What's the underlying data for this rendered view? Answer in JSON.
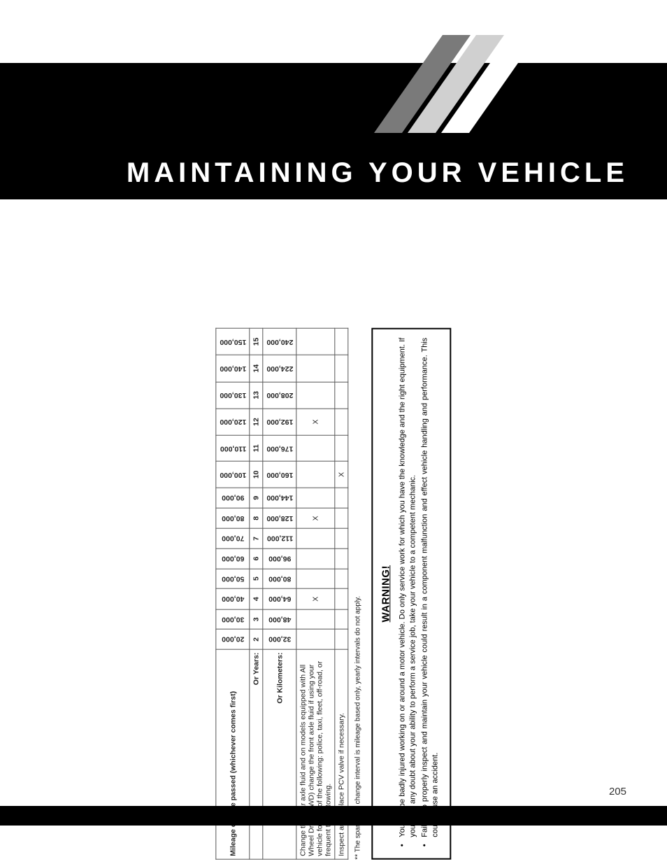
{
  "header": {
    "title": "MAINTAINING YOUR VEHICLE",
    "stripe_colors": [
      "#7a7a7a",
      "#d0d0d0",
      "#ffffff"
    ]
  },
  "table": {
    "caption": "Mileage or time passed (whichever comes first)",
    "miles": [
      "20,000",
      "30,000",
      "40,000",
      "50,000",
      "60,000",
      "70,000",
      "80,000",
      "90,000",
      "100,000",
      "110,000",
      "120,000",
      "130,000",
      "140,000",
      "150,000"
    ],
    "years_label": "Or Years:",
    "years": [
      "2",
      "3",
      "4",
      "5",
      "6",
      "7",
      "8",
      "9",
      "10",
      "11",
      "12",
      "13",
      "14",
      "15"
    ],
    "km_label": "Or Kilometers:",
    "km": [
      "32,000",
      "48,000",
      "64,000",
      "80,000",
      "96,000",
      "112,000",
      "128,000",
      "144,000",
      "160,000",
      "176,000",
      "192,000",
      "208,000",
      "224,000",
      "240,000"
    ],
    "rows": [
      {
        "label": "Change the rear axle fluid and on models equipped with All Wheel Drive (AWD) change the front axle fluid if using your vehicle for any of the following: police, taxi, fleet, off-road, or frequent trailer towing.",
        "marks": [
          "",
          "",
          "X",
          "",
          "",
          "",
          "X",
          "",
          "",
          "",
          "X",
          "",
          "",
          ""
        ]
      },
      {
        "label": "Inspect and replace PCV valve if necessary.",
        "marks": [
          "",
          "",
          "",
          "",
          "",
          "",
          "",
          "",
          "X",
          "",
          "",
          "",
          "",
          ""
        ]
      }
    ]
  },
  "footnote": "** The spark plug change interval is mileage based only, yearly intervals do not apply.",
  "warning": {
    "title": "WARNING!",
    "items": [
      "You can be badly injured working on or around a motor vehicle. Do only service work for which you have the knowledge and the right equipment. If you have any doubt about your ability to perform a service job, take your vehicle to a competent mechanic.",
      "Failure to properly inspect and maintain your vehicle could result in a component malfunction and effect vehicle handling and performance. This could cause an accident."
    ]
  },
  "page_number": "205"
}
